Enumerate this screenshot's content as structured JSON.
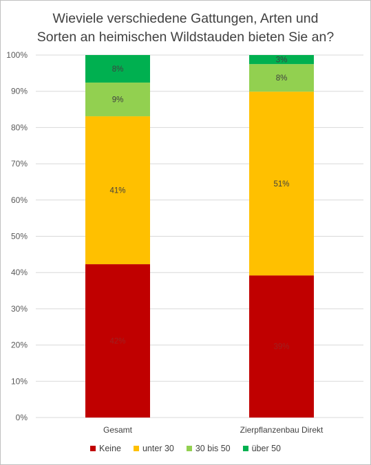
{
  "chart_data": {
    "type": "bar",
    "stacked": true,
    "title": "Wieviele verschiedene Gattungen, Arten und Sorten an heimischen Wildstauden bieten Sie an?",
    "title_lines": [
      "Wieviele verschiedene Gattungen, Arten und",
      "Sorten an heimischen Wildstauden bieten Sie an?"
    ],
    "categories": [
      "Gesamt",
      "Zierpflanzenbau Direkt"
    ],
    "series": [
      {
        "name": "Keine",
        "color": "#c00000",
        "values": [
          42.3,
          39.2
        ],
        "labels": [
          "42%",
          "39%"
        ]
      },
      {
        "name": "unter 30",
        "color": "#ffc000",
        "values": [
          40.8,
          50.7
        ],
        "labels": [
          "41%",
          "51%"
        ]
      },
      {
        "name": "30 bis 50",
        "color": "#92d050",
        "values": [
          9.3,
          7.6
        ],
        "labels": [
          "9%",
          "8%"
        ]
      },
      {
        "name": "über 50",
        "color": "#00b050",
        "values": [
          7.6,
          2.5
        ],
        "labels": [
          "8%",
          "3%"
        ]
      }
    ],
    "ylim": [
      0,
      100
    ],
    "yticks": [
      "0%",
      "10%",
      "20%",
      "30%",
      "40%",
      "50%",
      "60%",
      "70%",
      "80%",
      "90%",
      "100%"
    ],
    "grid": true,
    "legend_position": "bottom"
  }
}
